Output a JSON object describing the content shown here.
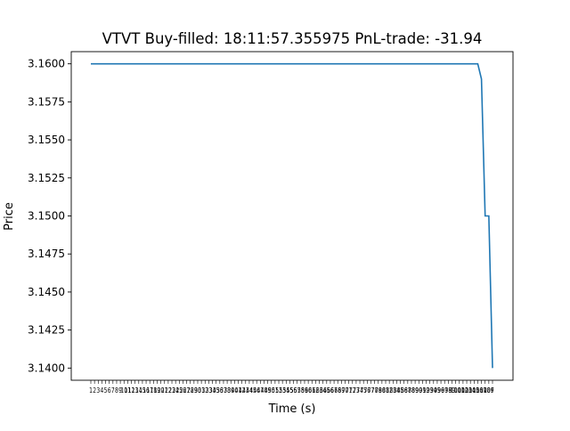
{
  "chart_data": {
    "type": "line",
    "title": "VTVT  Buy-filled:  18:11:57.355975  PnL-trade:  -31.94",
    "xlabel": "Time (s)",
    "ylabel": "Price",
    "ylim": [
      3.1392,
      3.1608
    ],
    "y_ticks": [
      "3.1400",
      "3.1425",
      "3.1450",
      "3.1475",
      "3.1500",
      "3.1525",
      "3.1550",
      "3.1575",
      "3.1600"
    ],
    "x_ticks_first": 1,
    "x_ticks_last": 110,
    "x_tick_final_label": "F",
    "grid": false,
    "line_color": "#1f77b4",
    "series": [
      {
        "x": [
          1,
          106,
          107,
          108,
          109,
          110
        ],
        "y": [
          3.16,
          3.16,
          3.159,
          3.15,
          3.15,
          3.14
        ]
      }
    ]
  }
}
